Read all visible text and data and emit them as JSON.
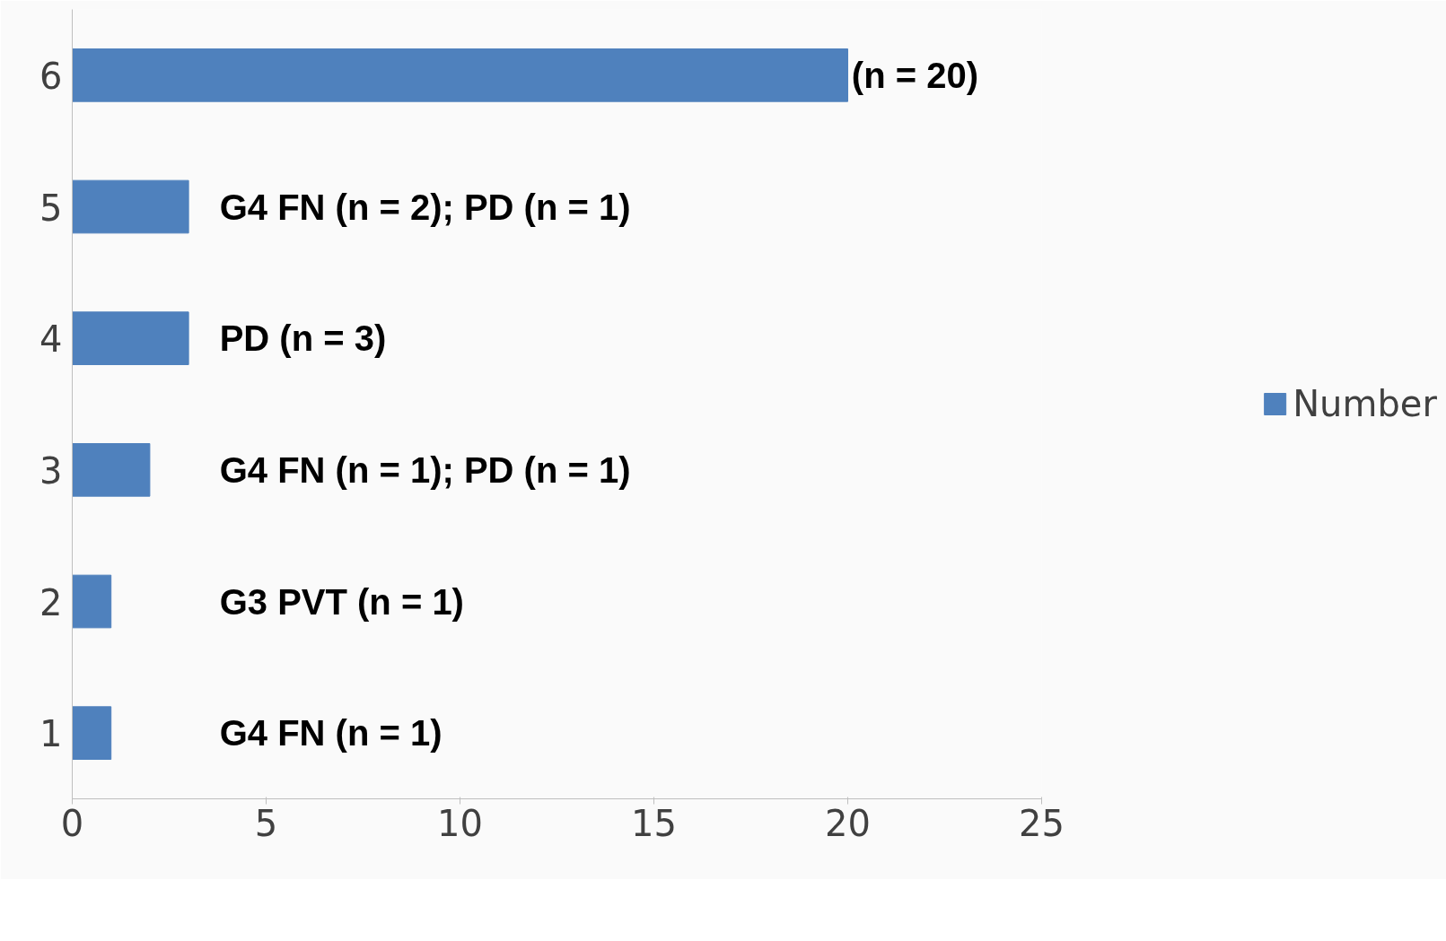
{
  "chart_data": {
    "type": "bar",
    "orientation": "horizontal",
    "categories": [
      "6",
      "5",
      "4",
      "3",
      "2",
      "1"
    ],
    "series": [
      {
        "name": "Number",
        "color": "#4f81bd",
        "values": [
          20,
          3,
          3,
          2,
          1,
          1
        ]
      }
    ],
    "xlim": [
      0,
      25
    ],
    "xticks": [
      0,
      5,
      10,
      15,
      20,
      25
    ],
    "grid": false,
    "legend": "right",
    "annotations": [
      "(n = 20)",
      "G4 FN (n = 2); PD (n = 1)",
      "PD (n = 3)",
      "G4 FN (n = 1); PD (n = 1)",
      "G3 PVT (n = 1)",
      "G4 FN (n = 1)"
    ]
  }
}
